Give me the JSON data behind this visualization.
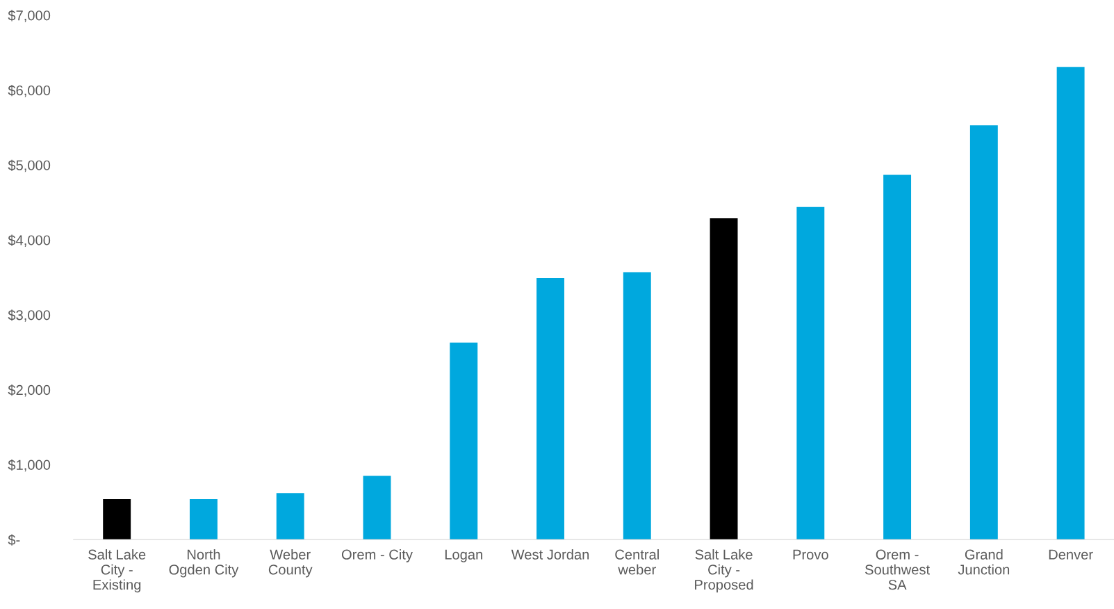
{
  "chart_data": {
    "type": "bar",
    "categories": [
      "Salt Lake\nCity -\nExisting",
      "North\nOgden City",
      "Weber\nCounty",
      "Orem - City",
      "Logan",
      "West Jordan",
      "Central\nweber",
      "Salt Lake\nCity -\nProposed",
      "Provo",
      "Orem -\nSouthwest\nSA",
      "Grand\nJunction",
      "Denver"
    ],
    "values": [
      540,
      540,
      620,
      850,
      2630,
      3490,
      3570,
      4290,
      4440,
      4870,
      5530,
      6310
    ],
    "colors": [
      "#000000",
      "#00a8de",
      "#00a8de",
      "#00a8de",
      "#00a8de",
      "#00a8de",
      "#00a8de",
      "#000000",
      "#00a8de",
      "#00a8de",
      "#00a8de",
      "#00a8de"
    ],
    "ylim": [
      0,
      7000
    ],
    "yticks": [
      {
        "value": 0,
        "label": "$-"
      },
      {
        "value": 1000,
        "label": "$1,000"
      },
      {
        "value": 2000,
        "label": "$2,000"
      },
      {
        "value": 3000,
        "label": "$3,000"
      },
      {
        "value": 4000,
        "label": "$4,000"
      },
      {
        "value": 5000,
        "label": "$5,000"
      },
      {
        "value": 6000,
        "label": "$6,000"
      },
      {
        "value": 7000,
        "label": "$7,000"
      }
    ],
    "grid": false,
    "legend": false
  }
}
